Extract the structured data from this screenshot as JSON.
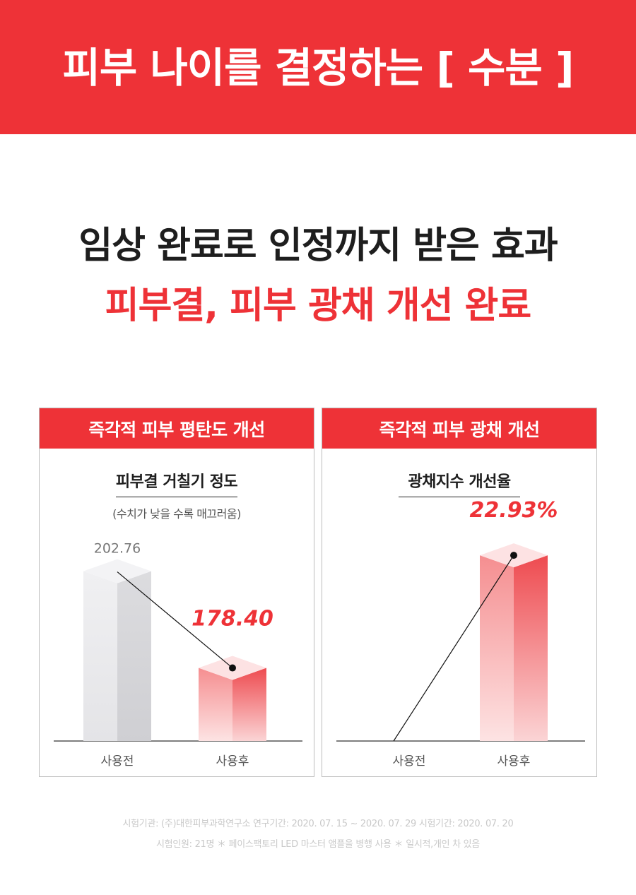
{
  "header": {
    "title": "피부 나이를 결정하는 [ 수분 ]"
  },
  "headline": {
    "line1": "임상 완료로 인정까지 받은 효과",
    "line2": "피부결, 피부 광채 개선 완료"
  },
  "colors": {
    "accent": "#ee3237",
    "before_bar": "#e4e4e8",
    "after_bar": "#f26b6e"
  },
  "chart_data": [
    {
      "type": "bar",
      "panel_title": "즉각적 피부 평탄도 개선",
      "title": "피부결 거칠기 정도",
      "note": "(수치가 낮을 수록 매끄러움)",
      "categories": [
        "사용전",
        "사용후"
      ],
      "values": [
        202.76,
        178.4
      ],
      "value_labels": [
        "202.76",
        "178.40"
      ],
      "ylim": [
        160,
        205
      ]
    },
    {
      "type": "bar",
      "panel_title": "즉각적 피부 광채 개선",
      "title": "광채지수 개선율",
      "categories": [
        "사용전",
        "사용후"
      ],
      "values": [
        0,
        22.93
      ],
      "value_labels": [
        "",
        "22.93%"
      ],
      "ylim": [
        0,
        28
      ]
    }
  ],
  "footer": {
    "line1": "시험기관: (주)대한피부과학연구소  연구기간: 2020. 07. 15 ~ 2020. 07. 29  시험기간: 2020. 07. 20",
    "line2": "시험인원: 21명   ＊ 페이스팩토리 LED 마스터 앰플을 병행 사용  ＊ 일시적,개인 차 있음"
  }
}
